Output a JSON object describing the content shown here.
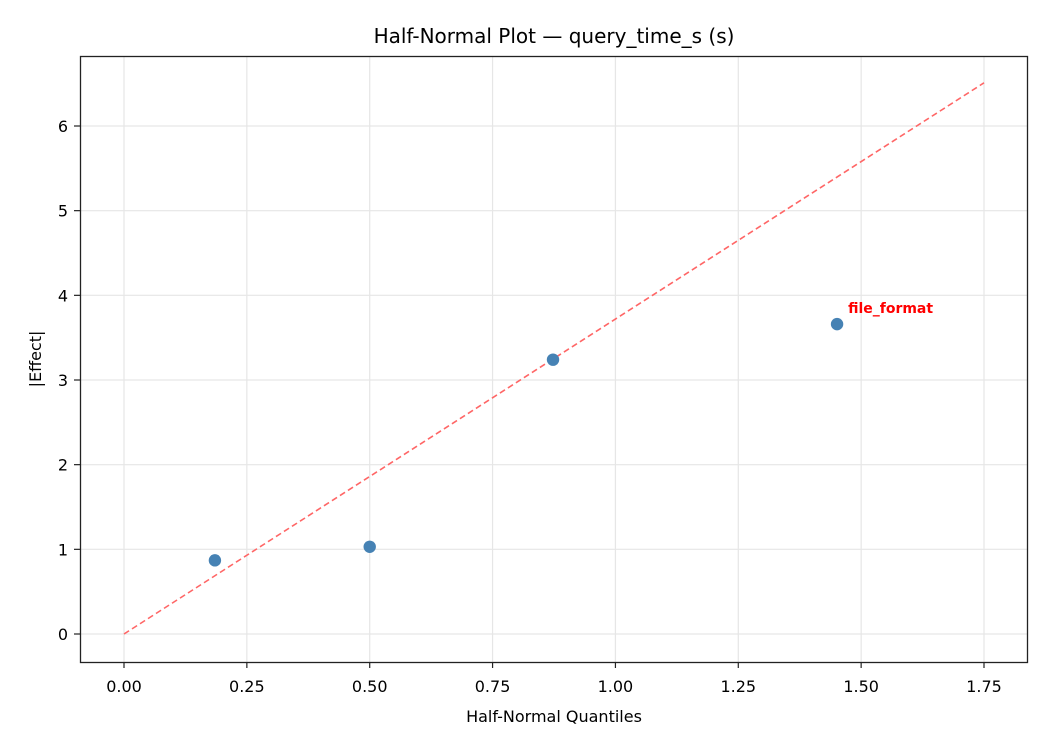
{
  "chart_data": {
    "type": "scatter",
    "title": "Half-Normal Plot — query_time_s (s)",
    "xlabel": "Half-Normal Quantiles",
    "ylabel": "|Effect|",
    "xlim": [
      -0.09,
      1.84
    ],
    "ylim": [
      -0.33,
      6.85
    ],
    "xticks": [
      "0.00",
      "0.25",
      "0.50",
      "0.75",
      "1.00",
      "1.25",
      "1.50",
      "1.75"
    ],
    "yticks": [
      "0",
      "1",
      "2",
      "3",
      "4",
      "5",
      "6"
    ],
    "grid": true,
    "series": [
      {
        "name": "effects",
        "color": "#4682b4",
        "points": [
          {
            "x": 0.185,
            "y": 0.87
          },
          {
            "x": 0.5,
            "y": 1.03
          },
          {
            "x": 0.873,
            "y": 3.24
          },
          {
            "x": 1.451,
            "y": 3.66,
            "label": "file_format"
          }
        ]
      }
    ],
    "reference_line": {
      "style": "dashed",
      "color": "#ff6666",
      "from": {
        "x": 0.0,
        "y": 0.0
      },
      "to": {
        "x": 1.75,
        "y": 6.51
      }
    },
    "annotations": [
      {
        "text": "file_format",
        "x": 1.451,
        "y": 3.66,
        "color": "#ff0000"
      }
    ]
  }
}
